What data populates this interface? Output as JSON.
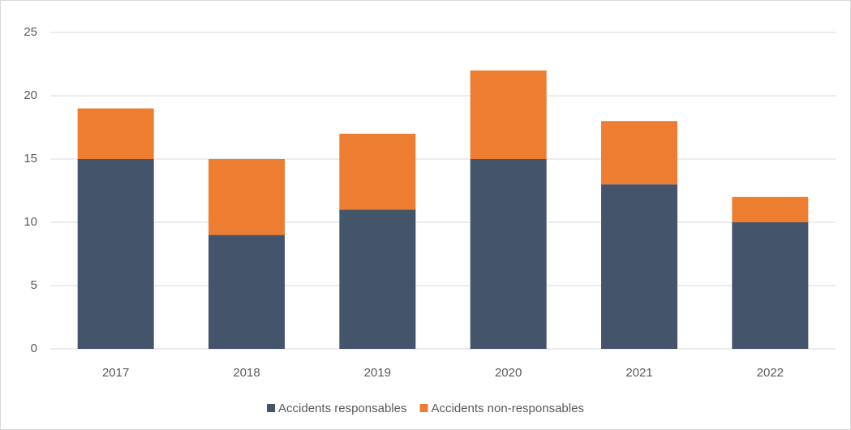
{
  "chart_data": {
    "type": "stacked_bar",
    "categories": [
      "2017",
      "2018",
      "2019",
      "2020",
      "2021",
      "2022"
    ],
    "series": [
      {
        "name": "Accidents responsables",
        "color": "#44546a",
        "values": [
          15,
          9,
          11,
          15,
          13,
          10
        ]
      },
      {
        "name": "Accidents non-responsables",
        "color": "#ed7d31",
        "values": [
          4,
          6,
          6,
          7,
          5,
          2
        ]
      }
    ],
    "ylim": [
      0,
      25
    ],
    "yticks": [
      0,
      5,
      10,
      15,
      20,
      25
    ],
    "grid": true,
    "legend": "bottom"
  }
}
